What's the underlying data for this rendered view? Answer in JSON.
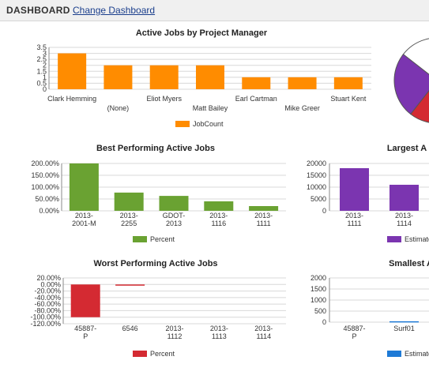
{
  "header": {
    "title": "DASHBOARD",
    "change_link": "Change Dashboard"
  },
  "chart_data": [
    {
      "id": "chart-active-jobs",
      "type": "bar",
      "title": "Active Jobs by Project Manager",
      "categories": [
        "Clark Hemming",
        "(None)",
        "Eliot Myers",
        "Matt Bailey",
        "Earl Cartman",
        "Mike Greer",
        "Stuart Kent"
      ],
      "values": [
        3,
        2,
        2,
        2,
        1,
        1,
        1
      ],
      "yticks": [
        "3.5",
        "3",
        "2.5",
        "2",
        "1.5",
        "1",
        "0.5",
        "0"
      ],
      "ylim": [
        0,
        3.5
      ],
      "series_name": "JobCount",
      "color": "#ff8c00",
      "grid": true,
      "legend": "bottom"
    },
    {
      "id": "chart-pie",
      "type": "pie",
      "values": [
        55,
        25,
        20
      ],
      "colors": [
        "#d42a32",
        "#7b35b0",
        "#ffffff"
      ]
    },
    {
      "id": "chart-best",
      "type": "bar",
      "title": "Best Performing Active Jobs",
      "categories": [
        "2013-2001-M",
        "2013-2255",
        "GDOT-2013",
        "2013-1116",
        "2013-1111"
      ],
      "values": [
        200,
        77,
        63,
        40,
        20
      ],
      "yticks": [
        "200.00%",
        "150.00%",
        "100.00%",
        "50.00%",
        "0.00%"
      ],
      "ylim": [
        0,
        200
      ],
      "series_name": "Percent",
      "color": "#6aa232",
      "grid": true,
      "legend": "bottom"
    },
    {
      "id": "chart-largest",
      "type": "bar",
      "title": "Largest A",
      "categories": [
        "2013-1111",
        "2013-1114"
      ],
      "values": [
        18000,
        11000
      ],
      "yticks": [
        "20000",
        "15000",
        "10000",
        "5000",
        "0"
      ],
      "ylim": [
        0,
        20000
      ],
      "series_name": "Estimate",
      "color": "#7b35b0",
      "grid": true,
      "legend": "bottom"
    },
    {
      "id": "chart-worst",
      "type": "bar",
      "title": "Worst Performing Active Jobs",
      "categories": [
        "45887-P",
        "6546",
        "2013-1112",
        "2013-1113",
        "2013-1114"
      ],
      "values": [
        -100,
        -3,
        0,
        0,
        0
      ],
      "yticks": [
        "20.00%",
        "0.00%",
        "-20.00%",
        "-40.00%",
        "-60.00%",
        "-80.00%",
        "-100.00%",
        "-120.00%"
      ],
      "ylim": [
        -120,
        20
      ],
      "series_name": "Percent",
      "color": "#d42a32",
      "grid": true,
      "legend": "bottom"
    },
    {
      "id": "chart-smallest",
      "type": "bar",
      "title": "Smallest A",
      "categories": [
        "45887-P",
        "Surf01"
      ],
      "values": [
        0,
        40
      ],
      "yticks": [
        "2000",
        "1500",
        "1000",
        "500",
        "0"
      ],
      "ylim": [
        0,
        2000
      ],
      "series_name": "Estimate",
      "color": "#1e7ad6",
      "grid": true,
      "legend": "bottom"
    }
  ]
}
